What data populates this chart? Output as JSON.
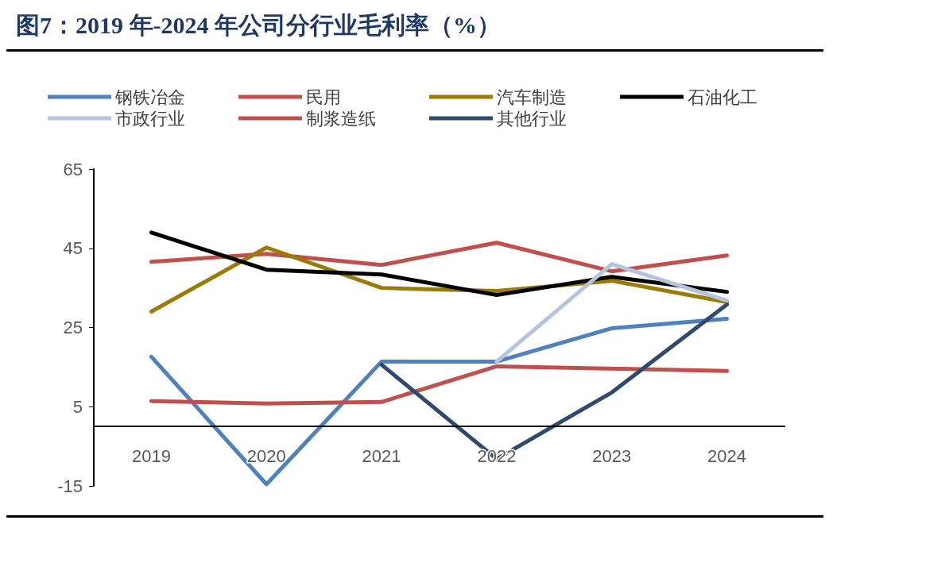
{
  "chart_data": {
    "type": "line",
    "title": "图7：2019 年-2024 年公司分行业毛利率（%）",
    "categories": [
      "2019",
      "2020",
      "2021",
      "2022",
      "2023",
      "2024"
    ],
    "series": [
      {
        "name": "钢铁冶金",
        "color": "#4f81bd",
        "values": [
          17.6,
          -14.6,
          16.4,
          16.4,
          24.8,
          27.2
        ]
      },
      {
        "name": "民用",
        "color": "#c0504d",
        "values": [
          41.6,
          43.6,
          40.8,
          46.4,
          39.2,
          43.2
        ]
      },
      {
        "name": "汽车制造",
        "color": "#9a7b0a",
        "values": [
          29,
          45.2,
          35,
          34.2,
          36.8,
          31.4
        ]
      },
      {
        "name": "石油化工",
        "color": "#000000",
        "values": [
          49,
          39.6,
          38.4,
          33.2,
          37.8,
          34
        ]
      },
      {
        "name": "市政行业",
        "color": "#b4c3de",
        "values": [
          null,
          null,
          null,
          16.4,
          41,
          31.8
        ]
      },
      {
        "name": "制浆造纸",
        "color": "#c0504d",
        "values": [
          6.4,
          5.8,
          6.2,
          15.2,
          14.6,
          14
        ]
      },
      {
        "name": "其他行业",
        "color": "#2e4a6e",
        "values": [
          null,
          null,
          15.6,
          -8.2,
          8.6,
          30.8
        ]
      }
    ],
    "ylim": [
      -15,
      65
    ],
    "yticks": [
      -15,
      5,
      25,
      45,
      65
    ],
    "grid": false,
    "legend": "top",
    "marker": "none",
    "line_style": "solid"
  }
}
